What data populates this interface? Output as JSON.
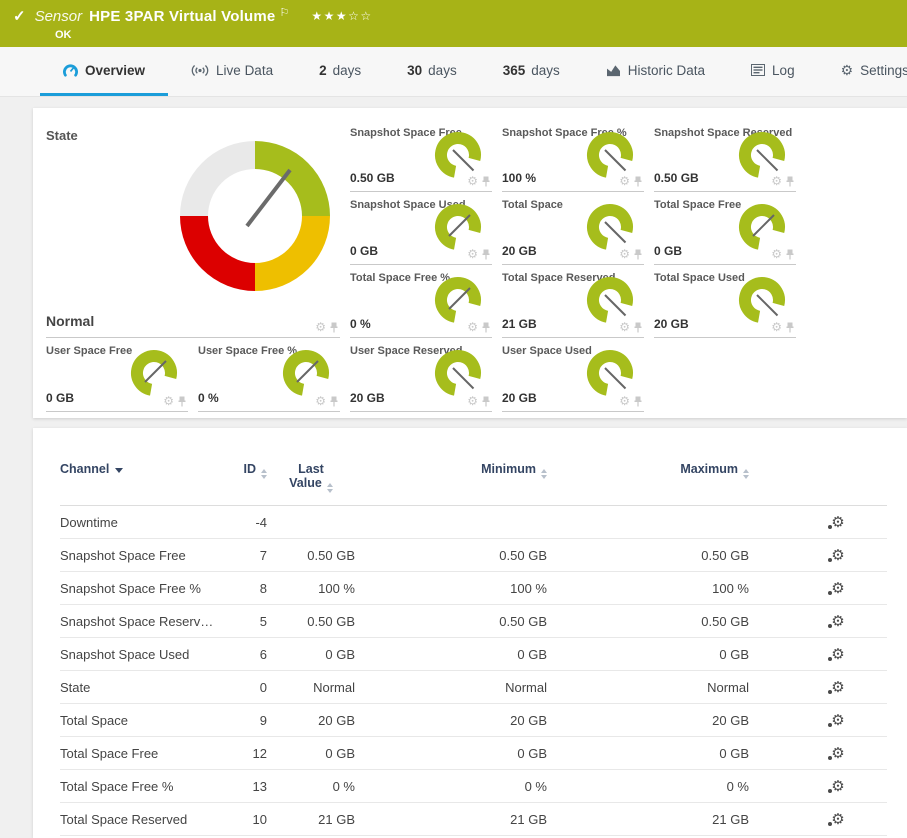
{
  "header": {
    "kind": "Sensor",
    "title": "HPE 3PAR Virtual Volume",
    "status": "OK",
    "stars_filled": 3,
    "stars_empty": 2
  },
  "icons": {
    "check": "✓",
    "flag": "⚐",
    "star_filled": "★",
    "star_empty": "☆",
    "gear": "⚙",
    "table_gear": "⚙"
  },
  "tabs": [
    {
      "icon": "gauge-icon",
      "label": "Overview",
      "active": true
    },
    {
      "icon": "live-icon",
      "label": "Live Data"
    },
    {
      "prefix": "2",
      "label": "days"
    },
    {
      "prefix": "30",
      "label": "days"
    },
    {
      "prefix": "365",
      "label": "days"
    },
    {
      "icon": "chart-icon",
      "label": "Historic Data"
    },
    {
      "icon": "log-icon",
      "label": "Log"
    },
    {
      "icon": "gear-icon",
      "label": "Settings"
    }
  ],
  "state_panel": {
    "title": "State",
    "value": "Normal",
    "segment_colors": {
      "ok": "#a6bd1c",
      "warning": "#eebf00",
      "error": "#dc0000",
      "none": "#e9e9e9"
    }
  },
  "gauges": [
    {
      "title": "Snapshot Space Free",
      "value": "0.50 GB",
      "level": "high"
    },
    {
      "title": "Snapshot Space Free %",
      "value": "100 %",
      "level": "high"
    },
    {
      "title": "Snapshot Space Reserved",
      "value": "0.50 GB",
      "level": "high"
    },
    {
      "title": "Snapshot Space Used",
      "value": "0 GB",
      "level": "low"
    },
    {
      "title": "Total Space",
      "value": "20 GB",
      "level": "high"
    },
    {
      "title": "Total Space Free",
      "value": "0 GB",
      "level": "low"
    },
    {
      "title": "Total Space Free %",
      "value": "0 %",
      "level": "low"
    },
    {
      "title": "Total Space Reserved",
      "value": "21 GB",
      "level": "high"
    },
    {
      "title": "Total Space Used",
      "value": "20 GB",
      "level": "high"
    }
  ],
  "user_gauges": [
    {
      "title": "User Space Free",
      "value": "0 GB",
      "level": "low"
    },
    {
      "title": "User Space Free %",
      "value": "0 %",
      "level": "low"
    },
    {
      "title": "User Space Reserved",
      "value": "20 GB",
      "level": "high"
    },
    {
      "title": "User Space Used",
      "value": "20 GB",
      "level": "high"
    }
  ],
  "table": {
    "headers": {
      "channel": "Channel",
      "id": "ID",
      "last_value": "Last Value",
      "minimum": "Minimum",
      "maximum": "Maximum"
    },
    "rows": [
      {
        "channel": "Downtime",
        "id": "-4",
        "last": "",
        "min": "",
        "max": ""
      },
      {
        "channel": "Snapshot Space Free",
        "id": "7",
        "last": "0.50 GB",
        "min": "0.50 GB",
        "max": "0.50 GB"
      },
      {
        "channel": "Snapshot Space Free %",
        "id": "8",
        "last": "100 %",
        "min": "100 %",
        "max": "100 %"
      },
      {
        "channel": "Snapshot Space Reserv…",
        "id": "5",
        "last": "0.50 GB",
        "min": "0.50 GB",
        "max": "0.50 GB"
      },
      {
        "channel": "Snapshot Space Used",
        "id": "6",
        "last": "0 GB",
        "min": "0 GB",
        "max": "0 GB"
      },
      {
        "channel": "State",
        "id": "0",
        "last": "Normal",
        "min": "Normal",
        "max": "Normal"
      },
      {
        "channel": "Total Space",
        "id": "9",
        "last": "20 GB",
        "min": "20 GB",
        "max": "20 GB"
      },
      {
        "channel": "Total Space Free",
        "id": "12",
        "last": "0 GB",
        "min": "0 GB",
        "max": "0 GB"
      },
      {
        "channel": "Total Space Free %",
        "id": "13",
        "last": "0 %",
        "min": "0 %",
        "max": "0 %"
      },
      {
        "channel": "Total Space Reserved",
        "id": "10",
        "last": "21 GB",
        "min": "21 GB",
        "max": "21 GB"
      }
    ]
  },
  "colors": {
    "brand_green": "#a7b317",
    "accent_blue": "#1b9dd9",
    "gauge_green": "#a6bd1c",
    "warn_yellow": "#eebf00",
    "error_red": "#dc0000"
  }
}
